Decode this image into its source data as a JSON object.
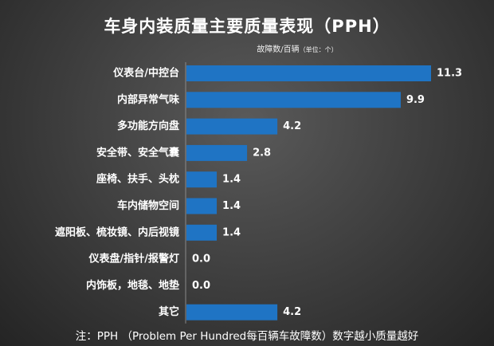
{
  "chart_data": {
    "type": "bar",
    "orientation": "horizontal",
    "title": "车身内装质量主要质量表现（PPH）",
    "subtitle": "故障数/百辆",
    "unit_note": "（单位：个）",
    "categories": [
      "仪表台/中控台",
      "内部异常气味",
      "多功能方向盘",
      "安全带、安全气囊",
      "座椅、扶手、头枕",
      "车内储物空间",
      "遮阳板、梳妆镜、内后视镜",
      "仪表盘/指针/报警灯",
      "内饰板，地毯、地垫",
      "其它"
    ],
    "values": [
      11.3,
      9.9,
      4.2,
      2.8,
      1.4,
      1.4,
      1.4,
      0.0,
      0.0,
      4.2
    ],
    "value_labels": [
      "11.3",
      "9.9",
      "4.2",
      "2.8",
      "1.4",
      "1.4",
      "1.4",
      "0.0",
      "0.0",
      "4.2"
    ],
    "xlim": [
      0,
      11.3
    ],
    "grid": false,
    "legend": "none",
    "bar_color": "#1f74c4",
    "note": "注：PPH （Problem Per Hundred每百辆车故障数）数字越小质量越好"
  }
}
